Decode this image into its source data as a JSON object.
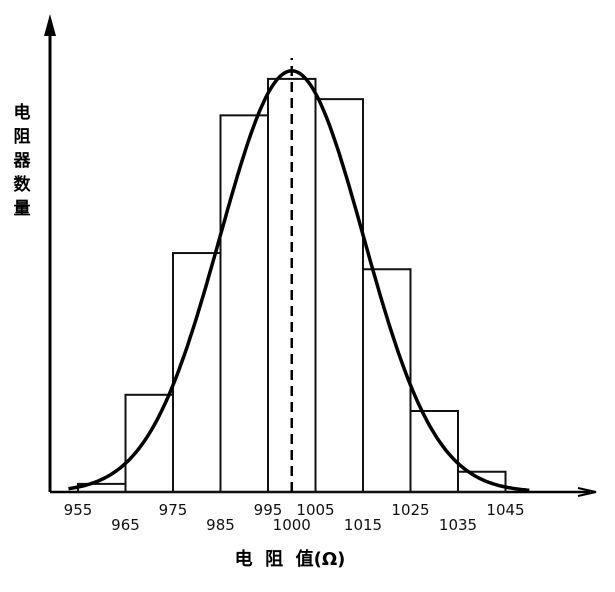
{
  "chart_data": {
    "type": "bar",
    "bar_style": "histogram",
    "bins": [
      [
        955,
        965
      ],
      [
        965,
        975
      ],
      [
        975,
        985
      ],
      [
        985,
        995
      ],
      [
        995,
        1005
      ],
      [
        1005,
        1015
      ],
      [
        1015,
        1025
      ],
      [
        1025,
        1035
      ],
      [
        1035,
        1045
      ]
    ],
    "values": [
      2,
      24,
      59,
      93,
      102,
      97,
      55,
      20,
      5
    ],
    "curve": "normal",
    "mean_line": 1000,
    "ylim": [
      0,
      105
    ],
    "xlim": [
      955,
      1058
    ],
    "tick_labels": [
      "955",
      "965",
      "975",
      "985",
      "995",
      "1000",
      "1005",
      "1015",
      "1025",
      "1035",
      "1045"
    ],
    "ylabel": "电阻器数量",
    "xlabel": "电  阻  值(Ω)",
    "grid": false
  },
  "colors": {
    "ink": "#000000",
    "bar_edge": "#111111",
    "background": "#ffffff"
  }
}
